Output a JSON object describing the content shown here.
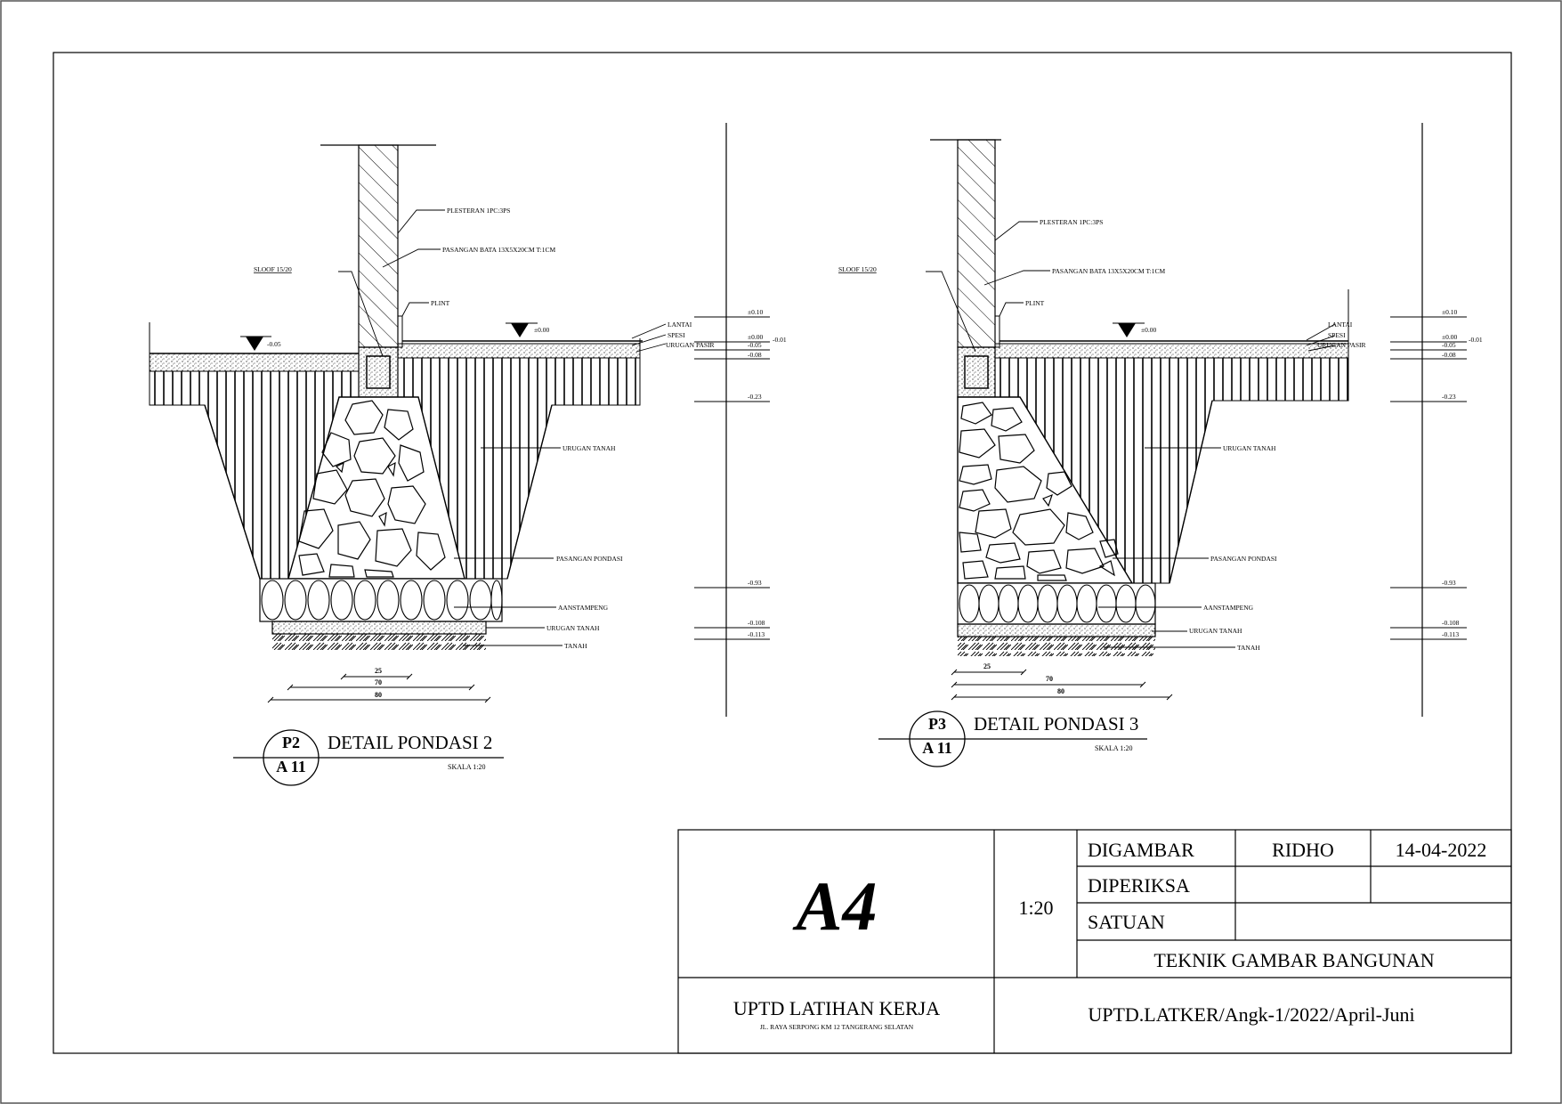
{
  "details": [
    {
      "id": "P2",
      "sheet": "A 11",
      "title": "DETAIL PONDASI 2",
      "scale": "SKALA 1:20",
      "labels": {
        "plesteran": "PLESTERAN 1PC:3PS",
        "pasangan_bata": "PASANGAN BATA 13X5X20CM T:1CM",
        "sloof": "SLOOF 15/20",
        "plint": "PLINT",
        "lantai": "LANTAI",
        "spesi": "SPESI",
        "urugan_pasir": "URUGAN PASIR",
        "urugan_tanah": "URUGAN TANAH",
        "pasangan_pondasi": "PASANGAN PONDASI",
        "aanstampeng": "AANSTAMPENG",
        "urugan_tanah_bottom": "URUGAN TANAH",
        "tanah": "TANAH"
      },
      "level_left": "-0.05",
      "level_floor": "±0.00",
      "dims": [
        "25",
        "70",
        "80"
      ],
      "levels_right": [
        "±0.10",
        "±0.00",
        "-0.01",
        "-0.05",
        "-0.08",
        "-0.23",
        "-0.93",
        "-0.108",
        "-0.113"
      ]
    },
    {
      "id": "P3",
      "sheet": "A 11",
      "title": "DETAIL PONDASI 3",
      "scale": "SKALA 1:20",
      "labels": {
        "plesteran": "PLESTERAN 1PC:3PS",
        "pasangan_bata": "PASANGAN BATA 13X5X20CM T:1CM",
        "sloof": "SLOOF 15/20",
        "plint": "PLINT",
        "lantai": "LANTAI",
        "spesi": "SPESI",
        "urugan_pasir": "URUGAN PASIR",
        "urugan_tanah": "URUGAN TANAH",
        "pasangan_pondasi": "PASANGAN PONDASI",
        "aanstampeng": "AANSTAMPENG",
        "urugan_tanah_bottom": "URUGAN TANAH",
        "tanah": "TANAH"
      },
      "level_floor": "±0.00",
      "dims": [
        "25",
        "70",
        "80"
      ],
      "levels_right": [
        "±0.10",
        "±0.00",
        "-0.01",
        "-0.05",
        "-0.08",
        "-0.23",
        "-0.93",
        "-0.108",
        "-0.113"
      ]
    }
  ],
  "title_block": {
    "paper": "A4",
    "scale": "1:20",
    "digambar_label": "DIGAMBAR",
    "digambar_name": "RIDHO",
    "date": "14-04-2022",
    "diperiksa_label": "DIPERIKSA",
    "satuan_label": "SATUAN",
    "department": "TEKNIK GAMBAR BANGUNAN",
    "institution": "UPTD LATIHAN KERJA",
    "address": "JL. RAYA SERPONG KM 12 TANGERANG SELATAN",
    "code": "UPTD.LATKER/Angk-1/2022/April-Juni"
  }
}
